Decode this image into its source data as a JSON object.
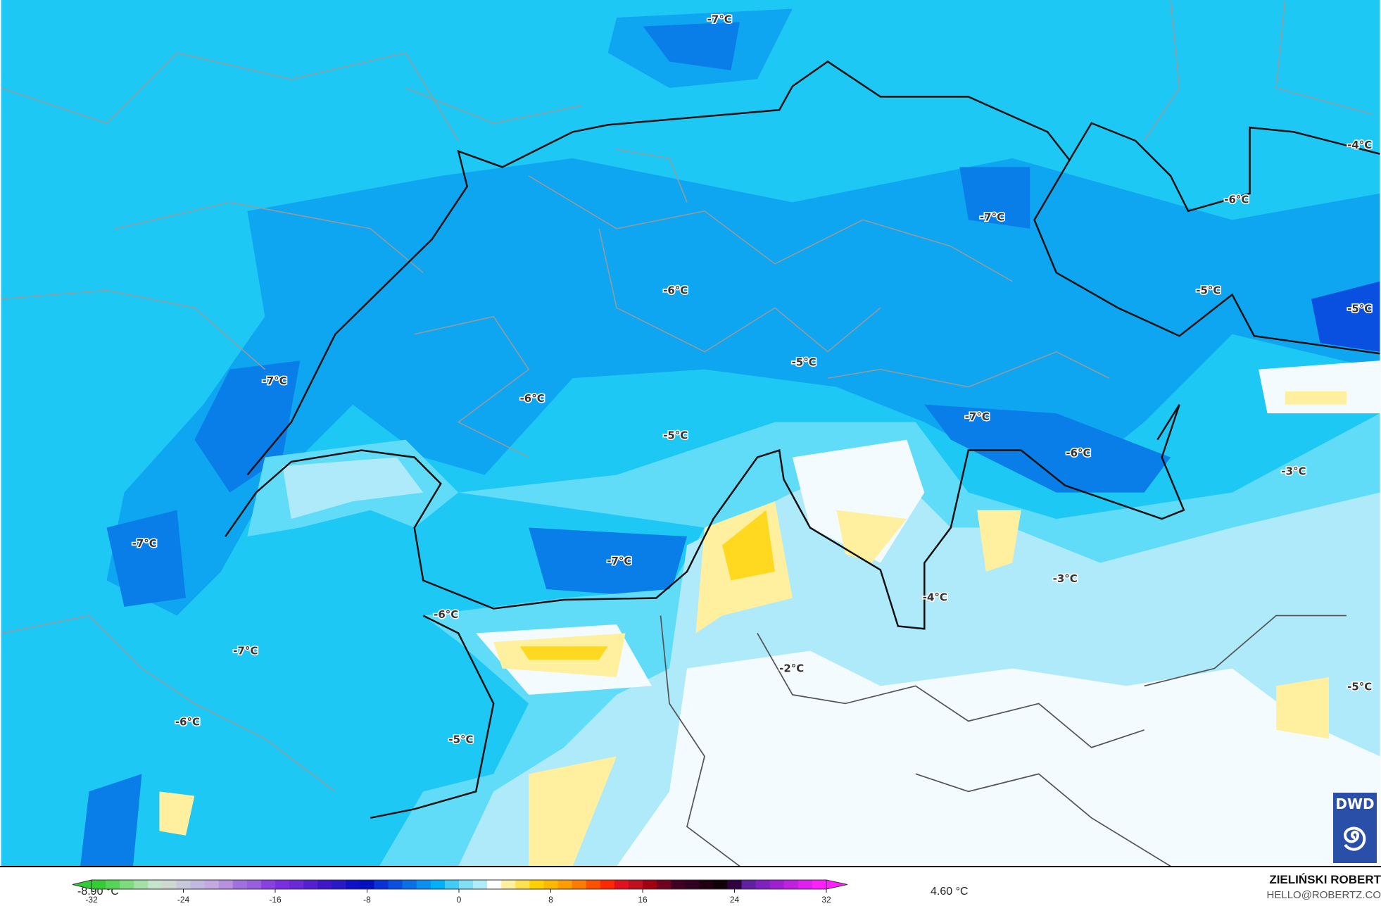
{
  "map": {
    "colors": {
      "base": "#1ec8f4",
      "dark1": "#0ea6f0",
      "dark2": "#0a7ee8",
      "dark3": "#0a50e0",
      "light1": "#60dcf8",
      "light2": "#aeeafa",
      "white": "#f4fbfe",
      "yellow1": "#fff0a0",
      "yellow2": "#ffd820",
      "border_country": "#111111",
      "border_region": "#9a9a9a"
    },
    "labels": [
      {
        "text": "-7°C",
        "lon_lat_hint": "n"
      },
      {
        "text": "-4°C"
      },
      {
        "text": "-6°C"
      },
      {
        "text": "-7°C"
      },
      {
        "text": "-6°C"
      },
      {
        "text": "-5°C"
      },
      {
        "text": "-5°C"
      },
      {
        "text": "-5°C"
      },
      {
        "text": "-7°C"
      },
      {
        "text": "-6°C"
      },
      {
        "text": "-7°C"
      },
      {
        "text": "-5°C"
      },
      {
        "text": "-6°C"
      },
      {
        "text": "-3°C"
      },
      {
        "text": "-7°C"
      },
      {
        "text": "-7°C"
      },
      {
        "text": "-3°C"
      },
      {
        "text": "-4°C"
      },
      {
        "text": "-6°C"
      },
      {
        "text": "-2°C"
      },
      {
        "text": "-7°C"
      },
      {
        "text": "-5°C"
      },
      {
        "text": "-6°C"
      },
      {
        "text": "-5°C"
      }
    ],
    "logo": {
      "text": "DWD",
      "icon": "dwd-spiral-logo"
    }
  },
  "legend": {
    "min_label": "-8.90 °C",
    "max_label": "4.60 °C",
    "range": [
      -32,
      32
    ],
    "ticks": [
      "-32",
      "-24",
      "-16",
      "-8",
      "0",
      "8",
      "16",
      "24",
      "32"
    ],
    "colors": [
      "#33cc33",
      "#55d455",
      "#7ddc7d",
      "#a3e0a3",
      "#c4e4cc",
      "#cfd8d0",
      "#c8c8dc",
      "#c0b8e0",
      "#c4a8e0",
      "#b890e0",
      "#a070e0",
      "#9a5ee0",
      "#8a40e0",
      "#7a2ee0",
      "#6a28d8",
      "#5520d0",
      "#3e18c8",
      "#2818c8",
      "#1010c8",
      "#0010c0",
      "#0a30d8",
      "#0a50e0",
      "#0a70e8",
      "#0a90f0",
      "#00b0f8",
      "#40ccf8",
      "#80e0f8",
      "#b0ecf8",
      "#ffffff",
      "#fff0a0",
      "#ffe050",
      "#ffd000",
      "#ffb800",
      "#ff9c00",
      "#ff7a00",
      "#ff5000",
      "#ff2800",
      "#e01020",
      "#c01020",
      "#a00010",
      "#700020",
      "#400020",
      "#300020",
      "#200010",
      "#100008",
      "#300040",
      "#6020a0",
      "#8020c0",
      "#a020d0",
      "#c020e0",
      "#e020f0",
      "#ff20ff"
    ]
  },
  "credit": {
    "name": "ZIELIŃSKI ROBERT",
    "email": "HELLO@ROBERTZ.CO"
  }
}
